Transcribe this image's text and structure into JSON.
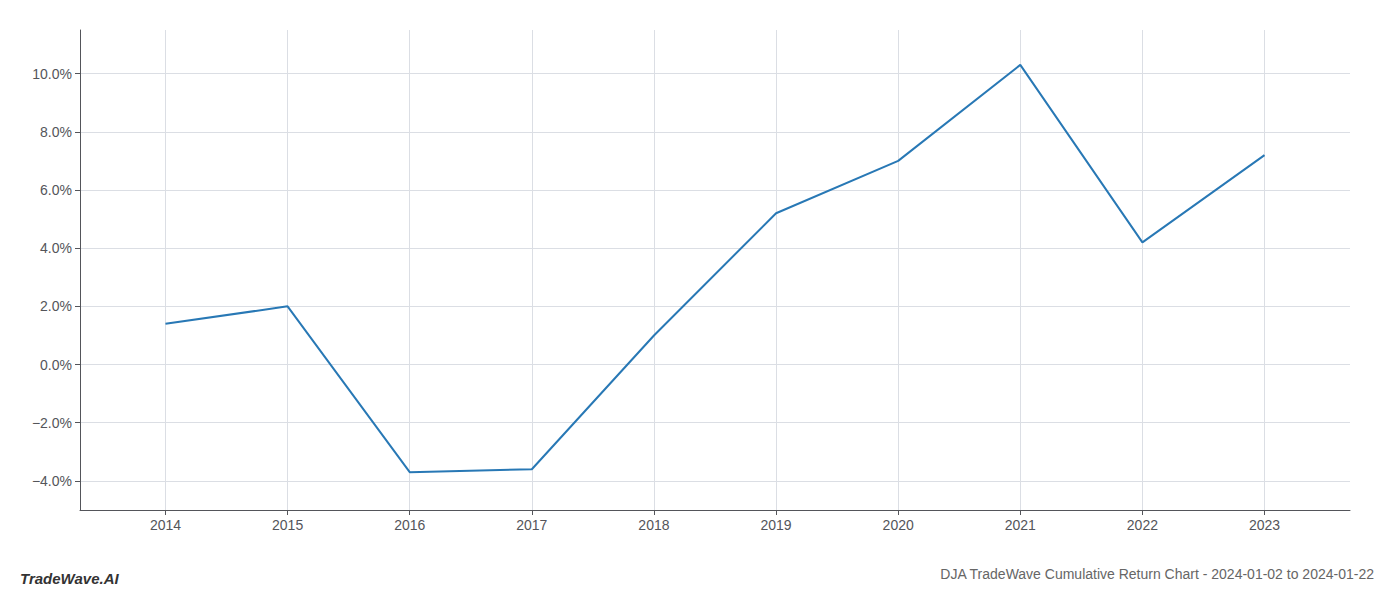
{
  "chart_data": {
    "type": "line",
    "title": "DJA TradeWave Cumulative Return Chart - 2024-01-02 to 2024-01-22",
    "annotations": [
      "TradeWave.AI"
    ],
    "x": [
      2014,
      2015,
      2016,
      2017,
      2018,
      2019,
      2020,
      2021,
      2022,
      2023
    ],
    "values": [
      0.014,
      0.02,
      -0.037,
      -0.036,
      0.01,
      0.052,
      0.07,
      0.103,
      0.042,
      0.072
    ],
    "color": "#2878b5",
    "xlim": [
      2013.3,
      2023.7
    ],
    "xticks": [
      2014,
      2015,
      2016,
      2017,
      2018,
      2019,
      2020,
      2021,
      2022,
      2023
    ],
    "ylim": [
      -0.05,
      0.115
    ],
    "yticks": [
      {
        "value": -0.04,
        "label": "−4.0%"
      },
      {
        "value": -0.02,
        "label": "−2.0%"
      },
      {
        "value": 0.0,
        "label": "0.0%"
      },
      {
        "value": 0.02,
        "label": "2.0%"
      },
      {
        "value": 0.04,
        "label": "4.0%"
      },
      {
        "value": 0.06,
        "label": "6.0%"
      },
      {
        "value": 0.08,
        "label": "8.0%"
      },
      {
        "value": 0.1,
        "label": "10.0%"
      }
    ],
    "grid": true
  }
}
